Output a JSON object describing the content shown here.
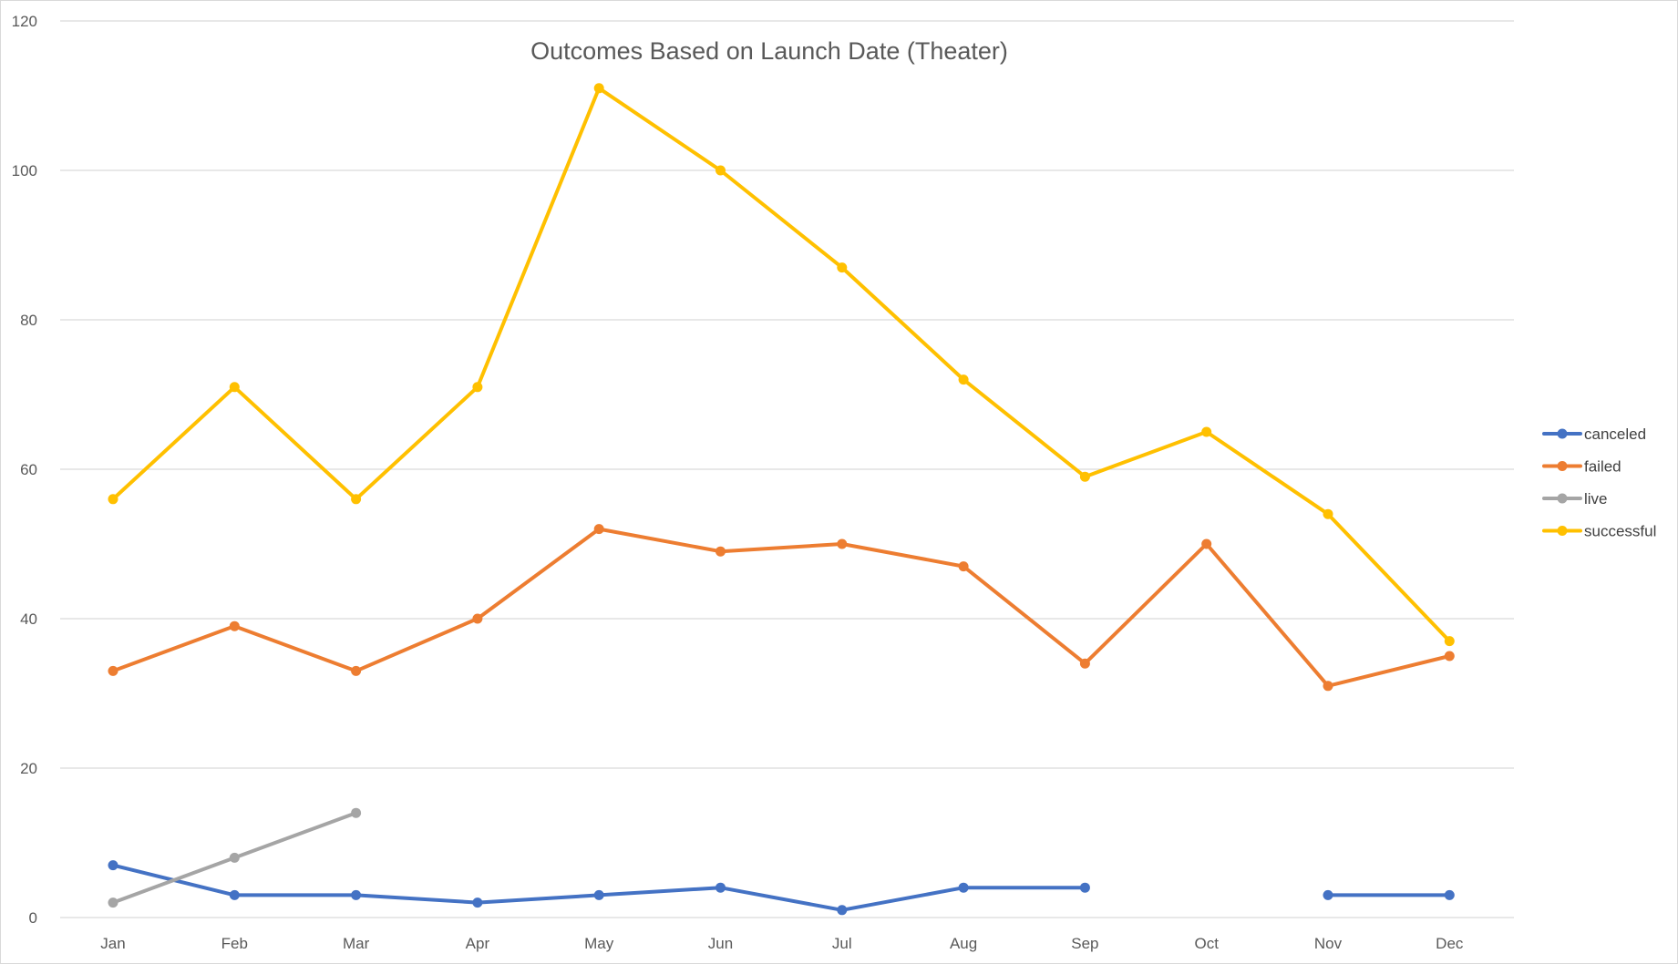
{
  "chart_data": {
    "type": "line",
    "title": "Outcomes Based on Launch Date (Theater)",
    "xlabel": "",
    "ylabel": "",
    "categories": [
      "Jan",
      "Feb",
      "Mar",
      "Apr",
      "May",
      "Jun",
      "Jul",
      "Aug",
      "Sep",
      "Oct",
      "Nov",
      "Dec"
    ],
    "ylim": [
      0,
      120
    ],
    "yticks": [
      "0",
      "20",
      "40",
      "60",
      "80",
      "100",
      "120"
    ],
    "grid": true,
    "legend": "right",
    "series": [
      {
        "name": "canceled",
        "color": "#4472C4",
        "values": [
          7,
          3,
          3,
          2,
          3,
          4,
          1,
          4,
          4,
          null,
          3,
          3
        ]
      },
      {
        "name": "failed",
        "color": "#ED7D31",
        "values": [
          33,
          39,
          33,
          40,
          52,
          49,
          50,
          47,
          34,
          50,
          31,
          35
        ]
      },
      {
        "name": "live",
        "color": "#A5A5A5",
        "values": [
          2,
          8,
          14,
          null,
          null,
          null,
          null,
          null,
          null,
          null,
          null,
          null
        ]
      },
      {
        "name": "successful",
        "color": "#FFC000",
        "values": [
          56,
          71,
          56,
          71,
          111,
          100,
          87,
          72,
          59,
          65,
          54,
          37
        ]
      }
    ]
  }
}
